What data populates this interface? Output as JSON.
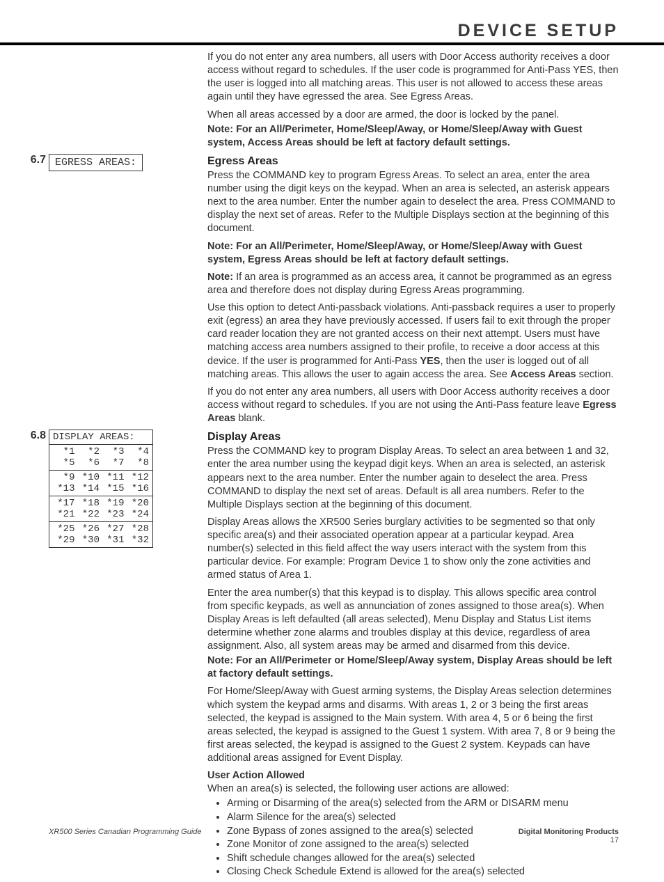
{
  "header": {
    "title": "DEVICE SETUP"
  },
  "intro": {
    "p1": "If you do not enter any area numbers, all users with Door Access authority receives a door access without regard to schedules.  If the user code is programmed for Anti-Pass YES, then the user is logged into all matching areas.  This user is not allowed to access these areas again until they have egressed the area.  See Egress Areas.",
    "p2": "When all areas accessed by a door are armed, the door is locked by the panel.",
    "note": "Note: For an All/Perimeter, Home/Sleep/Away, or Home/Sleep/Away with Guest system, Access Areas should be left at factory default settings."
  },
  "s67": {
    "num": "6.7",
    "lcd": "EGRESS AREAS:",
    "title": "Egress Areas",
    "p1": "Press the COMMAND key to program Egress Areas.  To select an area, enter the area number using the digit keys on the keypad.  When an area is selected, an asterisk appears next to the area number.  Enter the number again to deselect the area.  Press COMMAND to display the next set of areas.  Refer to the Multiple Displays section at the beginning of this document.",
    "note1": "Note: For an All/Perimeter, Home/Sleep/Away, or Home/Sleep/Away with Guest system, Egress Areas should be left at factory default settings.",
    "note2a": "Note:",
    "note2b": " If an area is programmed as an access area, it cannot be programmed as an egress area and therefore does not display during Egress Areas programming.",
    "p2a": "Use this option to detect Anti-passback violations.  Anti-passback requires a user to properly exit (egress) an area they have previously accessed.  If users fail to exit through the proper card reader location they are not granted access on their next attempt.  Users must have matching access area numbers assigned to their profile, to receive a door access at this device.  If the user is programmed for Anti-Pass ",
    "p2yes": "YES",
    "p2b": ", then the user is logged out of all matching areas.  This allows the user to again access the area.  See ",
    "p2link": "Access Areas",
    "p2c": " section.",
    "p3a": "If you do not enter any area numbers, all users with Door Access authority receives a door access without regard to schedules.  If you are not using the Anti-Pass feature leave ",
    "p3b": "Egress Areas",
    "p3c": " blank."
  },
  "s68": {
    "num": "6.8",
    "lcd_head": "DISPLAY AREAS:",
    "grid": [
      [
        " *1",
        " *2",
        " *3",
        " *4",
        " *5",
        " *6",
        " *7",
        " *8"
      ],
      [
        " *9",
        "*10",
        "*11",
        "*12",
        "*13",
        "*14",
        "*15",
        "*16"
      ],
      [
        "*17",
        "*18",
        "*19",
        "*20",
        "*21",
        "*22",
        "*23",
        "*24"
      ],
      [
        "*25",
        "*26",
        "*27",
        "*28",
        "*29",
        "*30",
        "*31",
        "*32"
      ]
    ],
    "title": "Display Areas",
    "p1": "Press the COMMAND key to program Display Areas.  To select an area between 1 and 32, enter the area number using the keypad digit keys.  When an area is selected, an asterisk appears next to the area number.  Enter the number again to deselect the area.  Press COMMAND to display the next set of areas.  Default is all area numbers.  Refer to the Multiple Displays section at the beginning of this document.",
    "p2": "Display Areas allows the XR500 Series burglary activities to be segmented so that only specific area(s) and their associated operation appear at a particular keypad. Area number(s) selected in this field affect the way users interact with the system from this particular device.  For example: Program Device 1 to show only the zone activities and armed status of Area 1.",
    "p3": "Enter the area number(s) that this keypad is to display.  This allows specific area control from specific keypads, as well as annunciation of zones assigned to those area(s).  When Display Areas is left defaulted (all areas selected), Menu Display and Status List items determine whether zone alarms and troubles display at this device, regardless of area assignment.  Also, all system areas may be armed and disarmed from this device.",
    "note": "Note: For an All/Perimeter or Home/Sleep/Away system, Display Areas should be left at factory default settings.",
    "p4": "For Home/Sleep/Away with Guest arming systems, the Display Areas selection determines which system the keypad arms and disarms.  With areas 1, 2 or 3 being the first areas selected, the keypad is assigned to the Main system. With area 4, 5 or 6 being the first areas selected, the keypad is assigned to the Guest 1 system. With area 7, 8 or 9 being the first areas selected, the keypad is assigned to the Guest 2 system. Keypads can have additional areas assigned for Event Display.",
    "sub": "User Action Allowed",
    "p5": "When an area(s) is selected, the following user actions are allowed:",
    "bullets": [
      "Arming or Disarming of the area(s) selected from the ARM or DISARM menu",
      "Alarm Silence for the area(s) selected",
      "Zone Bypass of zones assigned to the area(s) selected",
      "Zone Monitor of zone assigned to the area(s) selected",
      "Shift schedule changes allowed for the area(s) selected",
      "Closing Check Schedule Extend is allowed for the area(s) selected"
    ]
  },
  "footer": {
    "left": "XR500 Series Canadian Programming Guide",
    "right": "Digital Monitoring Products",
    "page": "17"
  }
}
